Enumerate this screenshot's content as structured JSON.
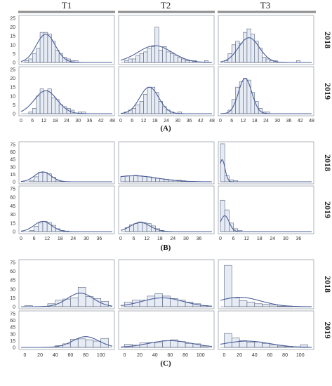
{
  "column_labels": [
    "T1",
    "T2",
    "T3"
  ],
  "colors": {
    "bar_fill": "#e6ebf4",
    "bar_stroke": "#55607a",
    "curve": "#4a5f9a",
    "frame": "#9aa0aa",
    "header_bar": "#8c8c8c"
  },
  "chart_data": [
    {
      "type": "bar",
      "panel": "(A)",
      "row_labels": [
        "2018",
        "2019"
      ],
      "ylim": [
        0,
        25
      ],
      "yticks": [
        0,
        5,
        10,
        15,
        20,
        25
      ],
      "xlim": [
        0,
        48
      ],
      "xticks": [
        0,
        6,
        12,
        18,
        24,
        30,
        36,
        42,
        48
      ],
      "bin_width": 2,
      "histograms": [
        {
          "year": "2018",
          "column": "T1",
          "bins": [
            [
              2,
              1
            ],
            [
              4,
              2
            ],
            [
              6,
              5
            ],
            [
              8,
              8
            ],
            [
              10,
              17
            ],
            [
              12,
              17
            ],
            [
              14,
              16
            ],
            [
              16,
              12
            ],
            [
              18,
              7
            ],
            [
              20,
              5
            ],
            [
              22,
              3
            ],
            [
              24,
              2
            ],
            [
              26,
              1
            ],
            [
              28,
              1
            ]
          ],
          "curve": {
            "mean": 13,
            "sd": 5,
            "peak": 16
          }
        },
        {
          "year": "2018",
          "column": "T2",
          "bins": [
            [
              2,
              1
            ],
            [
              4,
              2
            ],
            [
              6,
              2
            ],
            [
              8,
              4
            ],
            [
              10,
              5
            ],
            [
              12,
              6
            ],
            [
              14,
              8
            ],
            [
              16,
              9
            ],
            [
              18,
              20
            ],
            [
              20,
              7
            ],
            [
              22,
              9
            ],
            [
              24,
              6
            ],
            [
              26,
              5
            ],
            [
              28,
              4
            ],
            [
              30,
              3
            ],
            [
              32,
              2
            ],
            [
              34,
              1
            ],
            [
              36,
              1
            ],
            [
              38,
              1
            ],
            [
              44,
              1
            ]
          ],
          "curve": {
            "mean": 18,
            "sd": 9,
            "peak": 9.5
          }
        },
        {
          "year": "2018",
          "column": "T3",
          "bins": [
            [
              2,
              1
            ],
            [
              4,
              5
            ],
            [
              6,
              10
            ],
            [
              8,
              12
            ],
            [
              10,
              11
            ],
            [
              12,
              17
            ],
            [
              14,
              19
            ],
            [
              16,
              16
            ],
            [
              18,
              12
            ],
            [
              20,
              8
            ],
            [
              22,
              3
            ],
            [
              24,
              2
            ],
            [
              26,
              1
            ],
            [
              28,
              1
            ],
            [
              40,
              1
            ]
          ],
          "curve": {
            "mean": 15,
            "sd": 5.5,
            "peak": 14
          }
        },
        {
          "year": "2019",
          "column": "T1",
          "bins": [
            [
              4,
              1
            ],
            [
              6,
              3
            ],
            [
              8,
              10
            ],
            [
              10,
              14
            ],
            [
              12,
              13
            ],
            [
              14,
              14
            ],
            [
              16,
              9
            ],
            [
              18,
              8
            ],
            [
              20,
              5
            ],
            [
              22,
              4
            ],
            [
              24,
              3
            ],
            [
              26,
              2
            ],
            [
              30,
              1
            ],
            [
              32,
              1
            ]
          ],
          "curve": {
            "mean": 13,
            "sd": 6,
            "peak": 13
          }
        },
        {
          "year": "2019",
          "column": "T2",
          "bins": [
            [
              2,
              1
            ],
            [
              4,
              2
            ],
            [
              6,
              3
            ],
            [
              8,
              5
            ],
            [
              10,
              7
            ],
            [
              12,
              11
            ],
            [
              14,
              15
            ],
            [
              16,
              15
            ],
            [
              18,
              12
            ],
            [
              20,
              7
            ],
            [
              22,
              4
            ],
            [
              24,
              2
            ],
            [
              26,
              1
            ],
            [
              30,
              1
            ]
          ],
          "curve": {
            "mean": 15,
            "sd": 5,
            "peak": 15
          }
        },
        {
          "year": "2019",
          "column": "T3",
          "bins": [
            [
              4,
              2
            ],
            [
              6,
              8
            ],
            [
              8,
              15
            ],
            [
              10,
              18
            ],
            [
              12,
              20
            ],
            [
              14,
              19
            ],
            [
              16,
              12
            ],
            [
              18,
              7
            ],
            [
              20,
              3
            ],
            [
              22,
              1
            ],
            [
              24,
              1
            ]
          ],
          "curve": {
            "mean": 13,
            "sd": 3.5,
            "peak": 20
          }
        }
      ]
    },
    {
      "type": "bar",
      "panel": "(B)",
      "row_labels": [
        "2018",
        "2019"
      ],
      "ylim": [
        0,
        75
      ],
      "yticks": [
        0,
        15,
        30,
        45,
        60,
        75
      ],
      "xlim": [
        0,
        42
      ],
      "xticks": [
        0,
        6,
        12,
        18,
        24,
        30,
        36
      ],
      "bin_width": 2,
      "histograms": [
        {
          "year": "2018",
          "column": "T1",
          "bins": [
            [
              4,
              3
            ],
            [
              6,
              10
            ],
            [
              8,
              19
            ],
            [
              10,
              19
            ],
            [
              12,
              16
            ],
            [
              14,
              9
            ],
            [
              16,
              3
            ],
            [
              18,
              1
            ]
          ],
          "curve": {
            "mean": 10,
            "sd": 3.8,
            "peak": 20
          }
        },
        {
          "year": "2018",
          "column": "T2",
          "bins": [
            [
              0,
              11
            ],
            [
              2,
              12
            ],
            [
              4,
              12
            ],
            [
              6,
              13
            ],
            [
              8,
              12
            ],
            [
              10,
              11
            ],
            [
              12,
              10
            ],
            [
              14,
              8
            ],
            [
              16,
              7
            ],
            [
              18,
              6
            ],
            [
              20,
              5
            ],
            [
              22,
              4
            ],
            [
              24,
              3
            ],
            [
              26,
              3
            ],
            [
              28,
              2
            ],
            [
              30,
              1
            ],
            [
              32,
              1
            ]
          ],
          "curve": {
            "mean": 6,
            "sd": 11,
            "peak": 12
          }
        },
        {
          "year": "2018",
          "column": "T3",
          "bins": [
            [
              0,
              82
            ],
            [
              2,
              12
            ],
            [
              4,
              4
            ],
            [
              6,
              2
            ]
          ],
          "curve": {
            "mean": 0.8,
            "sd": 1.3,
            "peak": 45
          }
        },
        {
          "year": "2019",
          "column": "T1",
          "bins": [
            [
              4,
              2
            ],
            [
              6,
              9
            ],
            [
              8,
              15
            ],
            [
              10,
              18
            ],
            [
              12,
              16
            ],
            [
              14,
              11
            ],
            [
              16,
              5
            ],
            [
              18,
              2
            ],
            [
              20,
              1
            ]
          ],
          "curve": {
            "mean": 10,
            "sd": 4,
            "peak": 18
          }
        },
        {
          "year": "2019",
          "column": "T2",
          "bins": [
            [
              2,
              7
            ],
            [
              4,
              12
            ],
            [
              6,
              14
            ],
            [
              8,
              17
            ],
            [
              10,
              16
            ],
            [
              12,
              14
            ],
            [
              14,
              10
            ],
            [
              16,
              5
            ],
            [
              18,
              2
            ]
          ],
          "curve": {
            "mean": 9,
            "sd": 4.5,
            "peak": 16
          }
        },
        {
          "year": "2019",
          "column": "T3",
          "bins": [
            [
              0,
              55
            ],
            [
              2,
              38
            ],
            [
              4,
              15
            ],
            [
              6,
              5
            ],
            [
              8,
              2
            ]
          ],
          "curve": {
            "mean": 2,
            "sd": 2,
            "peak": 28
          }
        }
      ]
    },
    {
      "type": "bar",
      "panel": "(C)",
      "row_labels": [
        "2018",
        "2019"
      ],
      "ylim": [
        0,
        75
      ],
      "yticks": [
        0,
        15,
        30,
        45,
        60,
        75
      ],
      "xlim": [
        -5,
        115
      ],
      "xticks": [
        0,
        20,
        40,
        60,
        80,
        100
      ],
      "bin_width": 10,
      "histograms": [
        {
          "year": "2018",
          "column": "T1",
          "bins": [
            [
              0,
              2
            ],
            [
              30,
              5
            ],
            [
              40,
              11
            ],
            [
              50,
              13
            ],
            [
              60,
              15
            ],
            [
              70,
              33
            ],
            [
              80,
              17
            ],
            [
              90,
              14
            ],
            [
              100,
              9
            ]
          ],
          "curve": {
            "mean": 73,
            "sd": 17,
            "peak": 23
          }
        },
        {
          "year": "2018",
          "column": "T2",
          "bins": [
            [
              0,
              8
            ],
            [
              10,
              11
            ],
            [
              20,
              11
            ],
            [
              30,
              18
            ],
            [
              40,
              22
            ],
            [
              50,
              18
            ],
            [
              60,
              14
            ],
            [
              70,
              11
            ],
            [
              80,
              8
            ],
            [
              90,
              5
            ],
            [
              100,
              2
            ]
          ],
          "curve": {
            "mean": 50,
            "sd": 27,
            "peak": 15
          }
        },
        {
          "year": "2018",
          "column": "T3",
          "bins": [
            [
              0,
              70
            ],
            [
              10,
              15
            ],
            [
              20,
              10
            ],
            [
              30,
              8
            ],
            [
              40,
              5
            ],
            [
              50,
              4
            ],
            [
              60,
              3
            ],
            [
              70,
              1
            ],
            [
              80,
              1
            ]
          ],
          "curve": {
            "mean": 20,
            "sd": 28,
            "peak": 16
          }
        },
        {
          "year": "2019",
          "column": "T1",
          "bins": [
            [
              40,
              4
            ],
            [
              50,
              8
            ],
            [
              60,
              18
            ],
            [
              70,
              19
            ],
            [
              80,
              17
            ],
            [
              90,
              14
            ],
            [
              100,
              20
            ]
          ],
          "curve": {
            "mean": 80,
            "sd": 17,
            "peak": 24
          }
        },
        {
          "year": "2019",
          "column": "T2",
          "bins": [
            [
              0,
              7
            ],
            [
              10,
              5
            ],
            [
              20,
              10
            ],
            [
              30,
              11
            ],
            [
              40,
              10
            ],
            [
              50,
              15
            ],
            [
              60,
              17
            ],
            [
              70,
              13
            ],
            [
              80,
              9
            ],
            [
              90,
              8
            ],
            [
              100,
              3
            ]
          ],
          "curve": {
            "mean": 60,
            "sd": 28,
            "peak": 15
          }
        },
        {
          "year": "2019",
          "column": "T3",
          "bins": [
            [
              0,
              31
            ],
            [
              10,
              21
            ],
            [
              20,
              15
            ],
            [
              30,
              12
            ],
            [
              40,
              12
            ],
            [
              50,
              9
            ],
            [
              60,
              6
            ],
            [
              70,
              3
            ],
            [
              80,
              2
            ],
            [
              100,
              6
            ]
          ],
          "curve": {
            "mean": 30,
            "sd": 30,
            "peak": 14
          }
        }
      ]
    }
  ]
}
